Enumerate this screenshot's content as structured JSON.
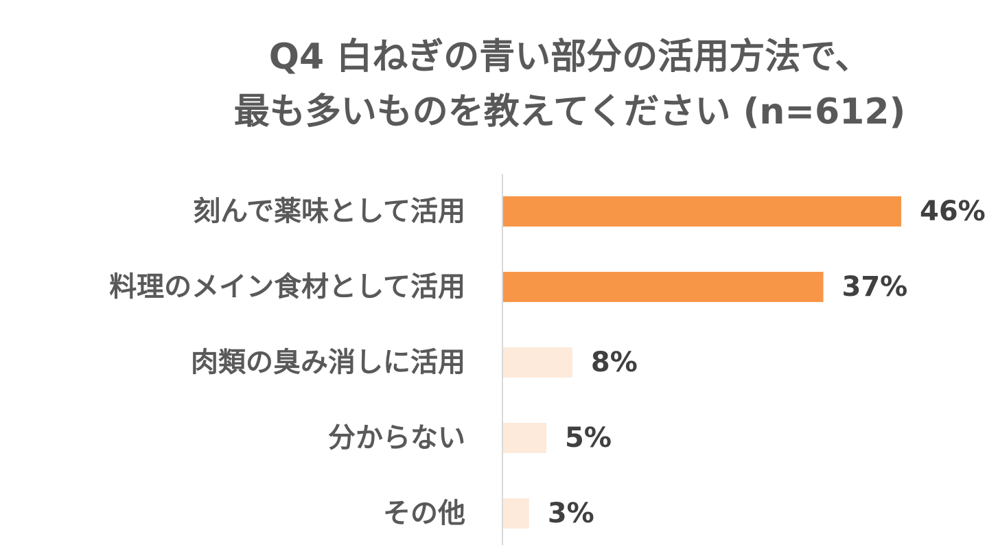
{
  "chart_data": {
    "type": "bar",
    "orientation": "horizontal",
    "title": "Q4 白ねぎの青い部分の活用方法で、",
    "subtitle": "最も多いものを教えてください (n=612)",
    "categories": [
      "刻んで薬味として活用",
      "料理のメイン食材として活用",
      "肉類の臭み消しに活用",
      "分からない",
      "その他"
    ],
    "values": [
      46,
      37,
      8,
      5,
      3
    ],
    "value_labels": [
      "46%",
      "37%",
      "8%",
      "5%",
      "3%"
    ],
    "unit": "%",
    "xlim": [
      0,
      46
    ],
    "grid": false,
    "legend": "none",
    "colors": {
      "highlight": "#F79646",
      "muted": "#FDEADA",
      "axis": "#D9D9D9",
      "title": "#595959",
      "label": "#595959",
      "value_text": "#404040"
    },
    "highlight_count": 2
  }
}
